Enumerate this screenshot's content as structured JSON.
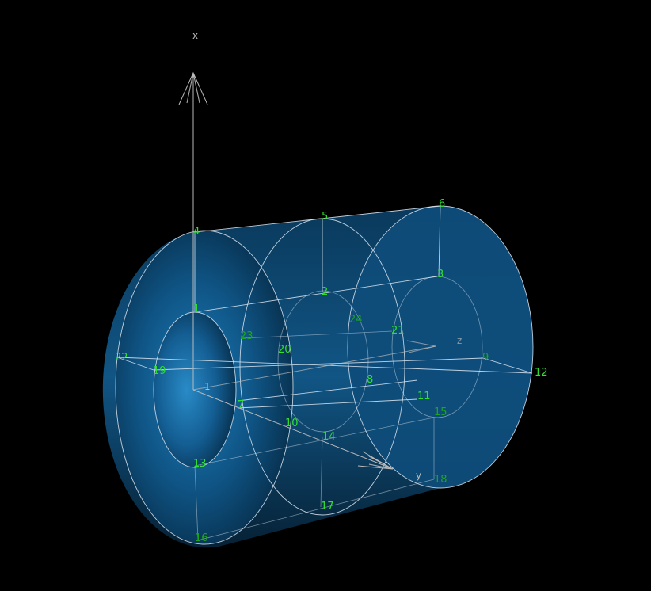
{
  "axes": {
    "x_label": "x",
    "y_label": "y",
    "z_label": "z",
    "origin_label": "1"
  },
  "nodes": [
    {
      "id": "1",
      "label": "1"
    },
    {
      "id": "2",
      "label": "2"
    },
    {
      "id": "3",
      "label": "3"
    },
    {
      "id": "4",
      "label": "4"
    },
    {
      "id": "5",
      "label": "5"
    },
    {
      "id": "6",
      "label": "6"
    },
    {
      "id": "7",
      "label": "7"
    },
    {
      "id": "8",
      "label": "8"
    },
    {
      "id": "9",
      "label": "9"
    },
    {
      "id": "10",
      "label": "10"
    },
    {
      "id": "11",
      "label": "11"
    },
    {
      "id": "12",
      "label": "12"
    },
    {
      "id": "13",
      "label": "13"
    },
    {
      "id": "14",
      "label": "14"
    },
    {
      "id": "15",
      "label": "15"
    },
    {
      "id": "16",
      "label": "16"
    },
    {
      "id": "17",
      "label": "17"
    },
    {
      "id": "18",
      "label": "18"
    },
    {
      "id": "19",
      "label": "19"
    },
    {
      "id": "20",
      "label": "20"
    },
    {
      "id": "21",
      "label": "21"
    },
    {
      "id": "22",
      "label": "22"
    },
    {
      "id": "23",
      "label": "23"
    },
    {
      "id": "24",
      "label": "24"
    }
  ],
  "colors": {
    "background": "#000000",
    "body_dark": "#062840",
    "body_light": "#1a78b4",
    "edge": "#dfe9f2",
    "node_label": "#2fe02f",
    "axis": "#b9b9b9"
  }
}
